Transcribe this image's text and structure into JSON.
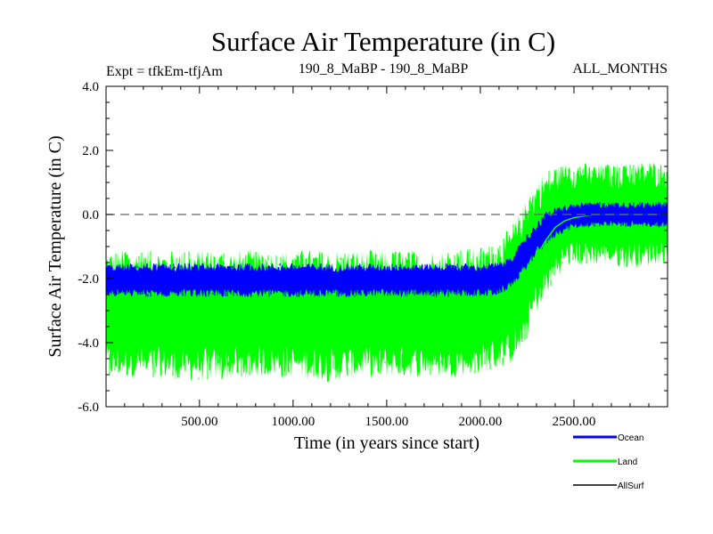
{
  "header": {
    "title": "Surface Air Temperature (in C)",
    "expt": "Expt = tfkEm-tfjAm",
    "run": "190_8_MaBP - 190_8_MaBP",
    "months": "ALL_MONTHS"
  },
  "chart_data": {
    "type": "line",
    "title": "Surface Air Temperature (in C)",
    "xlabel": "Time (in years since start)",
    "ylabel": "Surface Air Temperature (in C)",
    "xlim": [
      1,
      3000
    ],
    "ylim": [
      -6.0,
      4.0
    ],
    "x_ticks": [
      500,
      1000,
      1500,
      2000,
      2500
    ],
    "x_tick_labels": [
      "500.00",
      "1000.00",
      "1500.00",
      "2000.00",
      "2500.00"
    ],
    "y_ticks": [
      -6,
      -4,
      -2,
      0,
      2,
      4
    ],
    "y_tick_labels": [
      "-6.0",
      "-4.0",
      "-2.0",
      "0.0",
      "2.0",
      "4.0"
    ],
    "reference_line": {
      "y": 0.0,
      "style": "dashed",
      "color": "#666666"
    },
    "legend_position": "bottom-right, outside plot",
    "series": [
      {
        "name": "Land",
        "color": "#00ff00",
        "x": [
          1,
          200,
          400,
          600,
          800,
          1000,
          1200,
          1400,
          1600,
          1800,
          2000,
          2100,
          2150,
          2200,
          2250,
          2300,
          2350,
          2400,
          2450,
          2500,
          2600,
          2700,
          2800,
          2900,
          3000
        ],
        "values": [
          -3.1,
          -3.1,
          -3.1,
          -3.1,
          -3.1,
          -3.1,
          -3.1,
          -3.1,
          -3.1,
          -3.1,
          -3.1,
          -3.0,
          -2.85,
          -2.5,
          -1.9,
          -1.3,
          -0.8,
          -0.4,
          -0.2,
          -0.1,
          0.0,
          0.0,
          0.0,
          0.0,
          0.0
        ],
        "band_low": [
          -4.6,
          -4.6,
          -4.7,
          -4.7,
          -4.6,
          -4.6,
          -4.7,
          -4.6,
          -4.6,
          -4.6,
          -4.5,
          -4.3,
          -4.2,
          -4.0,
          -3.4,
          -2.6,
          -2.1,
          -1.6,
          -1.3,
          -1.2,
          -1.2,
          -1.2,
          -1.3,
          -1.2,
          -1.1
        ],
        "band_high": [
          -1.6,
          -1.6,
          -1.6,
          -1.6,
          -1.6,
          -1.6,
          -1.6,
          -1.6,
          -1.6,
          -1.6,
          -1.5,
          -1.3,
          -1.0,
          -0.6,
          0.0,
          0.6,
          0.9,
          1.1,
          1.2,
          1.2,
          1.2,
          1.2,
          1.2,
          1.3,
          1.2
        ],
        "min": -5.6,
        "max": 2.1
      },
      {
        "name": "Ocean",
        "color": "#0000ff",
        "x": [
          1,
          200,
          400,
          600,
          800,
          1000,
          1200,
          1400,
          1600,
          1800,
          2000,
          2100,
          2150,
          2200,
          2250,
          2300,
          2350,
          2400,
          2450,
          2500,
          2600,
          2700,
          2800,
          2900,
          3000
        ],
        "values": [
          -2.05,
          -2.05,
          -2.05,
          -2.05,
          -2.05,
          -2.05,
          -2.05,
          -2.05,
          -2.05,
          -2.05,
          -2.05,
          -2.0,
          -1.85,
          -1.55,
          -1.15,
          -0.75,
          -0.45,
          -0.25,
          -0.12,
          -0.05,
          0.0,
          0.0,
          0.0,
          0.0,
          0.0
        ],
        "band_low": [
          -2.45,
          -2.45,
          -2.45,
          -2.45,
          -2.45,
          -2.45,
          -2.45,
          -2.45,
          -2.45,
          -2.45,
          -2.45,
          -2.4,
          -2.25,
          -1.95,
          -1.55,
          -1.15,
          -0.85,
          -0.6,
          -0.45,
          -0.35,
          -0.3,
          -0.3,
          -0.3,
          -0.3,
          -0.3
        ],
        "band_high": [
          -1.65,
          -1.65,
          -1.65,
          -1.65,
          -1.65,
          -1.65,
          -1.65,
          -1.65,
          -1.65,
          -1.65,
          -1.65,
          -1.6,
          -1.45,
          -1.15,
          -0.75,
          -0.35,
          -0.05,
          0.1,
          0.2,
          0.25,
          0.3,
          0.3,
          0.3,
          0.3,
          0.3
        ]
      },
      {
        "name": "AllSurf",
        "color": "#000000",
        "values": []
      }
    ]
  }
}
